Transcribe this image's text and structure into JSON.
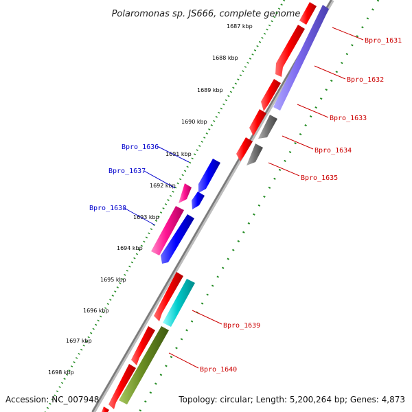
{
  "title": "Polaromonas sp. JS666, complete genome",
  "accession": "Accession: NC_007948",
  "topology": "Topology: circular; Length: 5,200,264 bp; Genes: 4,873",
  "ticks": [
    "1687 kbp",
    "1688 kbp",
    "1689 kbp",
    "1690 kbp",
    "1691 kbp",
    "1692 kbp",
    "1693 kbp",
    "1694 kbp",
    "1695 kbp",
    "1696 kbp",
    "1697 kbp",
    "1698 kbp"
  ],
  "labels": {
    "bpro_1631": "Bpro_1631",
    "bpro_1632": "Bpro_1632",
    "bpro_1633": "Bpro_1633",
    "bpro_1634": "Bpro_1634",
    "bpro_1635": "Bpro_1635",
    "bpro_1636": "Bpro_1636",
    "bpro_1637": "Bpro_1637",
    "bpro_1638": "Bpro_1638",
    "bpro_1639": "Bpro_1639",
    "bpro_1640": "Bpro_1640"
  },
  "colors": {
    "cds_red": "#ff0000",
    "cds_purple": "#7b68ee",
    "cds_gray": "#777777",
    "cds_blue": "#0000ff",
    "cds_magenta": "#ff1493",
    "cds_cyan": "#00cccc",
    "cds_olive": "#6b8e23",
    "backbone": "#8a8a8a",
    "ticks_green": "#228b22"
  }
}
